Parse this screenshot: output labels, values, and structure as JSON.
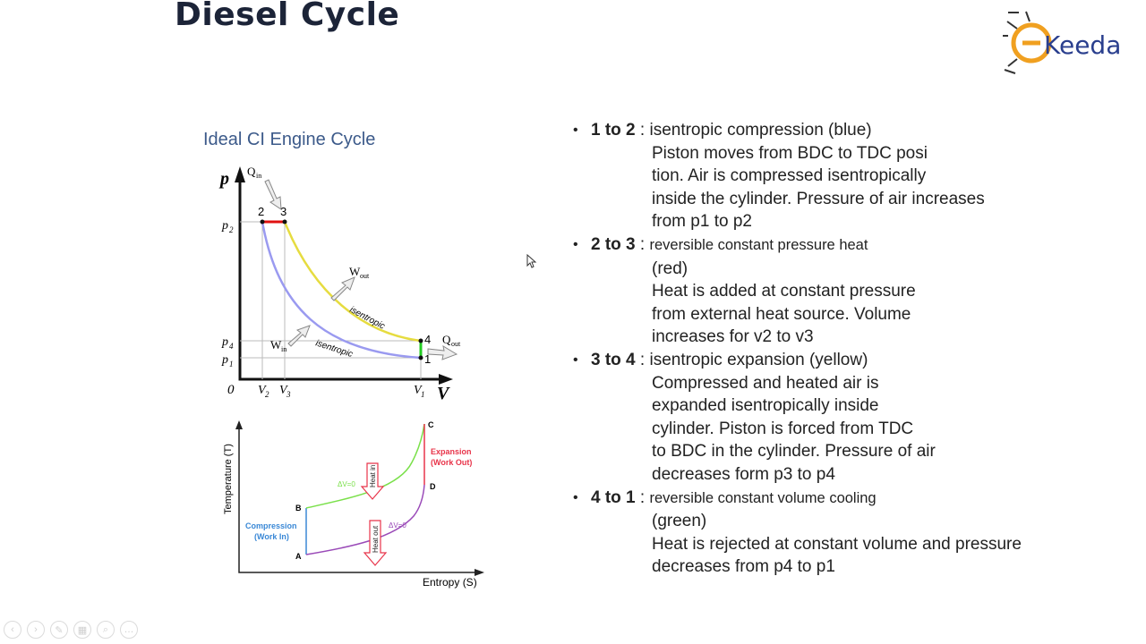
{
  "slide": {
    "title": "Diesel Cycle",
    "logo_text": "Keeda"
  },
  "pv_diagram": {
    "caption": "Ideal CI Engine Cycle",
    "axis_y": "p",
    "axis_x": "V",
    "origin": "0",
    "y_ticks": [
      "p",
      "p",
      "p"
    ],
    "y_tick_subs": [
      "2",
      "4",
      "1"
    ],
    "x_ticks": [
      "V",
      "V",
      "V"
    ],
    "x_tick_subs": [
      "2",
      "3",
      "1"
    ],
    "points": [
      "2",
      "3",
      "4",
      "1"
    ],
    "q_in": "Q",
    "q_in_sub": "in",
    "q_out": "Q",
    "q_out_sub": "out",
    "w_out": "W",
    "w_out_sub": "out",
    "w_in": "W",
    "w_in_sub": "in",
    "label_upper": "isentropic",
    "label_lower": "isentropic",
    "colors": {
      "compression": "#9a9af0",
      "heat_add": "#e01010",
      "expansion": "#e6dc40",
      "heat_reject": "#22cc22"
    }
  },
  "ts_diagram": {
    "ylabel": "Temperature (T)",
    "xlabel": "Entropy (S)",
    "points": [
      "A",
      "B",
      "C",
      "D"
    ],
    "compression_label": [
      "Compression",
      "(Work In)"
    ],
    "expansion_label": [
      "Expansion",
      "(Work Out)"
    ],
    "heat_in": "Heat in",
    "heat_out": "Heat out",
    "dv_upper": "ΔV=0",
    "dv_lower": "ΔV=0",
    "colors": {
      "compression": "#3a88d6",
      "heat_add": "#7ae04a",
      "expansion": "#e8344a",
      "heat_reject": "#9a4ab8"
    }
  },
  "bullets": [
    {
      "head": "1 to 2",
      "sep": " : ",
      "sub": "isentropic compression (blue)",
      "sub_large": true,
      "lines": [
        "Piston moves from BDC to TDC posi",
        "tion. Air is compressed isentropically",
        "inside the cylinder. Pressure of air increases",
        "from p1 to p2"
      ]
    },
    {
      "head": "2 to 3",
      "sep": " : ",
      "sub": "reversible constant pressure heat",
      "sub_large": false,
      "lines": [
        "(red)",
        "Heat is added at constant pressure",
        "from external heat source.  Volume",
        "increases for v2 to v3"
      ]
    },
    {
      "head": "3 to 4",
      "sep": " : ",
      "sub": "isentropic expansion (yellow)",
      "sub_large": true,
      "lines": [
        "Compressed and heated air is",
        "expanded isentropically inside",
        "cylinder. Piston is forced from TDC",
        "to BDC in the cylinder.   Pressure of air",
        "decreases form p3 to p4"
      ]
    },
    {
      "head": "4 to 1",
      "sep": " : ",
      "sub": "reversible constant volume cooling",
      "sub_large": false,
      "lines": [
        "(green)",
        "Heat is rejected at constant volume and pressure",
        "decreases from p4 to p1"
      ]
    }
  ],
  "toolbar": {
    "icons": [
      "prev-icon",
      "next-icon",
      "pen-icon",
      "slides-icon",
      "zoom-icon",
      "more-icon"
    ],
    "glyphs": [
      "‹",
      "›",
      "✎",
      "▦",
      "⌕",
      "…"
    ]
  }
}
